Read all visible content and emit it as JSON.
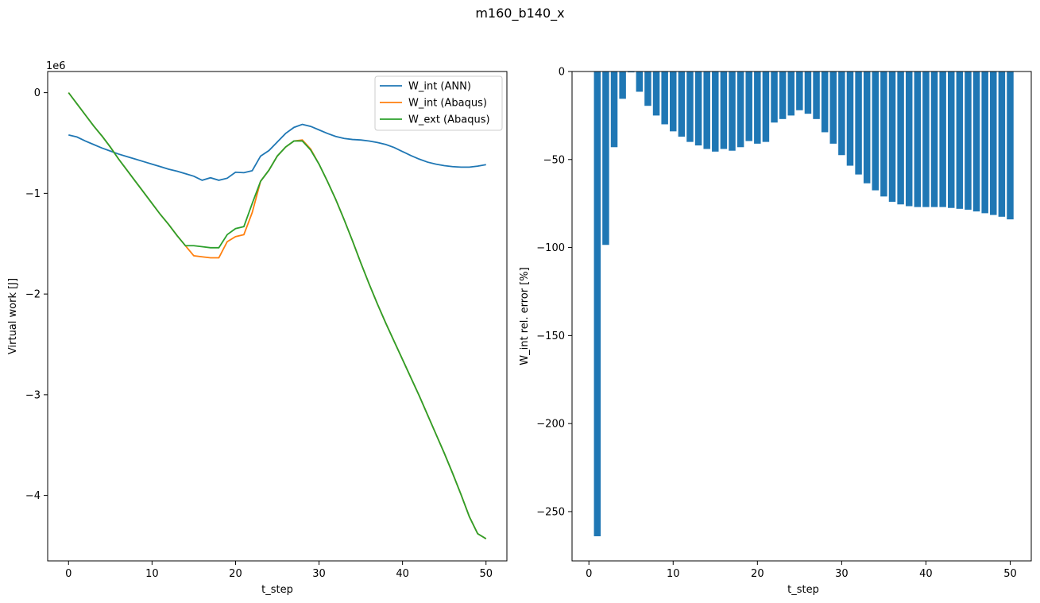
{
  "figure": {
    "title": "m160_b140_x"
  },
  "chart_data": [
    {
      "type": "line",
      "xlabel": "t_step",
      "ylabel": "Virtual work [J]",
      "y_multiplier_label": "1e6",
      "xlim": [
        -2.5,
        52.5
      ],
      "ylim": [
        -4.65,
        0.21
      ],
      "xticks": [
        0,
        10,
        20,
        30,
        40,
        50
      ],
      "yticks": [
        0,
        -1,
        -2,
        -3,
        -4
      ],
      "ytick_labels": [
        "0",
        "−1",
        "−2",
        "−3",
        "−4"
      ],
      "legend": "top-right",
      "series": [
        {
          "name": "W_int (ANN)",
          "color": "#1f77b4",
          "x": [
            0,
            1,
            2,
            3,
            4,
            5,
            6,
            7,
            8,
            9,
            10,
            11,
            12,
            13,
            14,
            15,
            16,
            17,
            18,
            19,
            20,
            21,
            22,
            23,
            24,
            25,
            26,
            27,
            28,
            29,
            30,
            31,
            32,
            33,
            34,
            35,
            36,
            37,
            38,
            39,
            40,
            41,
            42,
            43,
            44,
            45,
            46,
            47,
            48,
            49,
            50
          ],
          "y": [
            -0.42,
            -0.44,
            -0.48,
            -0.515,
            -0.55,
            -0.58,
            -0.61,
            -0.635,
            -0.66,
            -0.685,
            -0.71,
            -0.735,
            -0.76,
            -0.78,
            -0.805,
            -0.83,
            -0.87,
            -0.845,
            -0.87,
            -0.85,
            -0.79,
            -0.795,
            -0.775,
            -0.63,
            -0.575,
            -0.49,
            -0.405,
            -0.345,
            -0.315,
            -0.335,
            -0.37,
            -0.405,
            -0.435,
            -0.455,
            -0.465,
            -0.47,
            -0.48,
            -0.495,
            -0.515,
            -0.545,
            -0.585,
            -0.625,
            -0.66,
            -0.69,
            -0.71,
            -0.725,
            -0.735,
            -0.74,
            -0.74,
            -0.73,
            -0.715
          ]
        },
        {
          "name": "W_int (Abaqus)",
          "color": "#ff7f0e",
          "x": [
            0,
            1,
            2,
            3,
            4,
            5,
            6,
            7,
            8,
            9,
            10,
            11,
            12,
            13,
            14,
            15,
            16,
            17,
            18,
            19,
            20,
            21,
            22,
            23,
            24,
            25,
            26,
            27,
            28,
            29,
            30,
            31,
            32,
            33,
            34,
            35,
            36,
            37,
            38,
            39,
            40,
            41,
            42,
            43,
            44,
            45,
            46,
            47,
            48,
            49,
            50
          ],
          "y": [
            0,
            -0.11,
            -0.22,
            -0.33,
            -0.43,
            -0.54,
            -0.66,
            -0.77,
            -0.88,
            -0.99,
            -1.1,
            -1.21,
            -1.31,
            -1.42,
            -1.52,
            -1.62,
            -1.63,
            -1.64,
            -1.64,
            -1.48,
            -1.43,
            -1.41,
            -1.19,
            -0.88,
            -0.77,
            -0.63,
            -0.54,
            -0.48,
            -0.47,
            -0.56,
            -0.71,
            -0.88,
            -1.06,
            -1.26,
            -1.47,
            -1.69,
            -1.9,
            -2.1,
            -2.29,
            -2.47,
            -2.65,
            -2.83,
            -3.01,
            -3.2,
            -3.39,
            -3.58,
            -3.78,
            -3.99,
            -4.21,
            -4.38,
            -4.43
          ]
        },
        {
          "name": "W_ext (Abaqus)",
          "color": "#2ca02c",
          "x": [
            0,
            1,
            2,
            3,
            4,
            5,
            6,
            7,
            8,
            9,
            10,
            11,
            12,
            13,
            14,
            15,
            16,
            17,
            18,
            19,
            20,
            21,
            22,
            23,
            24,
            25,
            26,
            27,
            28,
            29,
            30,
            31,
            32,
            33,
            34,
            35,
            36,
            37,
            38,
            39,
            40,
            41,
            42,
            43,
            44,
            45,
            46,
            47,
            48,
            49,
            50
          ],
          "y": [
            0,
            -0.11,
            -0.22,
            -0.33,
            -0.43,
            -0.54,
            -0.66,
            -0.77,
            -0.88,
            -0.99,
            -1.1,
            -1.21,
            -1.31,
            -1.42,
            -1.52,
            -1.52,
            -1.53,
            -1.54,
            -1.54,
            -1.41,
            -1.35,
            -1.33,
            -1.1,
            -0.88,
            -0.77,
            -0.63,
            -0.54,
            -0.48,
            -0.48,
            -0.57,
            -0.71,
            -0.88,
            -1.06,
            -1.26,
            -1.47,
            -1.69,
            -1.9,
            -2.1,
            -2.29,
            -2.47,
            -2.65,
            -2.83,
            -3.01,
            -3.2,
            -3.39,
            -3.58,
            -3.78,
            -3.99,
            -4.21,
            -4.38,
            -4.43
          ]
        }
      ]
    },
    {
      "type": "bar",
      "xlabel": "t_step",
      "ylabel": "W_int rel. error [%]",
      "xlim": [
        -2.0,
        52.5
      ],
      "ylim": [
        -278,
        0
      ],
      "xticks": [
        0,
        10,
        20,
        30,
        40,
        50
      ],
      "yticks": [
        0,
        -50,
        -100,
        -150,
        -200,
        -250
      ],
      "ytick_labels": [
        "0",
        "−50",
        "−100",
        "−150",
        "−200",
        "−250"
      ],
      "color": "#1f77b4",
      "x": [
        1,
        2,
        3,
        4,
        5,
        6,
        7,
        8,
        9,
        10,
        11,
        12,
        13,
        14,
        15,
        16,
        17,
        18,
        19,
        20,
        21,
        22,
        23,
        24,
        25,
        26,
        27,
        28,
        29,
        30,
        31,
        32,
        33,
        34,
        35,
        36,
        37,
        38,
        39,
        40,
        41,
        42,
        43,
        44,
        45,
        46,
        47,
        48,
        49,
        50
      ],
      "values": [
        -264,
        -98.5,
        -43,
        -15.5,
        -0.5,
        -11.5,
        -19.5,
        -25,
        -30,
        -34,
        -37,
        -40,
        -42,
        -44,
        -45.5,
        -44,
        -45,
        -43,
        -39.5,
        -41,
        -40,
        -29,
        -27,
        -25,
        -22,
        -24,
        -27,
        -34.5,
        -41,
        -47.5,
        -53.5,
        -58.5,
        -63.5,
        -67.5,
        -71,
        -74,
        -75.5,
        -76.5,
        -77,
        -77,
        -77,
        -77,
        -77.5,
        -78,
        -78.5,
        -79.5,
        -80.5,
        -81.5,
        -82.5,
        -84
      ]
    }
  ]
}
